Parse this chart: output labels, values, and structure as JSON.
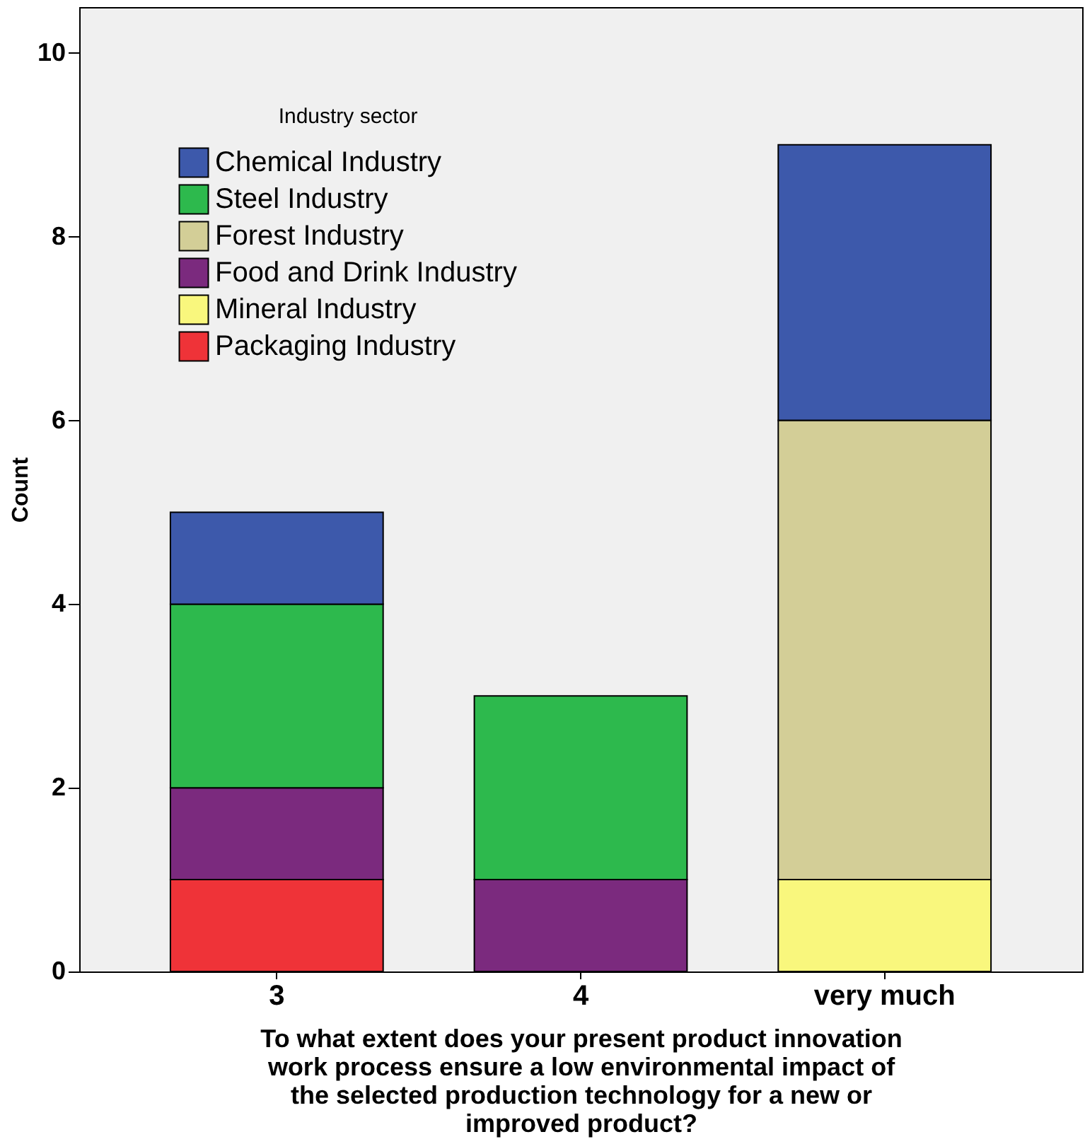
{
  "chart_data": {
    "type": "bar",
    "stacked": true,
    "xlabel": "To what extent does your present product innovation work process ensure a low environmental impact of the selected production technology for a new or improved product?",
    "ylabel": "Count",
    "legend_title": "Industry sector",
    "legend": "top left",
    "categories": [
      "3",
      "4",
      "very much"
    ],
    "series": [
      {
        "name": "Packaging Industry",
        "color": "#ef3338",
        "values": [
          1,
          null,
          null
        ]
      },
      {
        "name": "Mineral Industry",
        "color": "#f9f77d",
        "values": [
          null,
          null,
          1
        ]
      },
      {
        "name": "Food and Drink Industry",
        "color": "#7b2a7e",
        "values": [
          1,
          1,
          null
        ]
      },
      {
        "name": "Forest Industry",
        "color": "#d3ce97",
        "values": [
          null,
          null,
          5
        ]
      },
      {
        "name": "Steel Industry",
        "color": "#2db94d",
        "values": [
          2,
          2,
          null
        ]
      },
      {
        "name": "Chemical Industry",
        "color": "#3d59ab",
        "values": [
          1,
          null,
          3
        ]
      }
    ],
    "ylim": [
      0,
      10.5
    ],
    "yticks": [
      0,
      2,
      4,
      6,
      8,
      10
    ]
  }
}
